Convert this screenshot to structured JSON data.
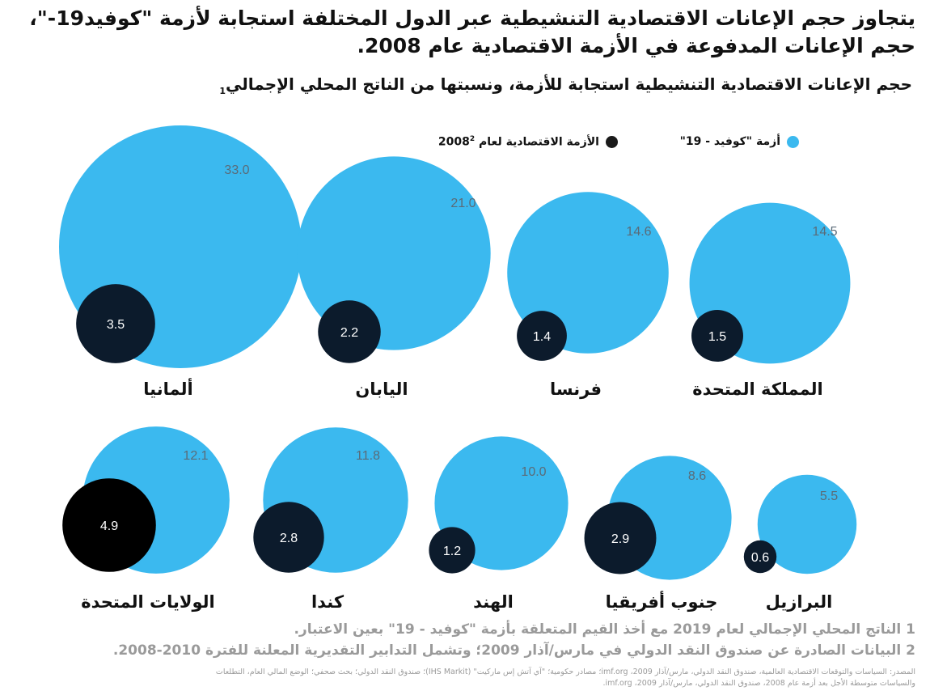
{
  "title_line1": "يتجاوز حجم الإعانات الاقتصادية التنشيطية عبر الدول المختلفة استجابة لأزمة \"كوفيد19-\"،",
  "title_line2": "حجم الإعانات المدفوعة في الأزمة الاقتصادية عام 2008.",
  "subtitle": "حجم الإعانات الاقتصادية التنشيطية استجابة للأزمة، ونسبتها من الناتج المحلي الإجمالي",
  "subtitle_sup": "1",
  "colors": {
    "covid": "#3bb9ef",
    "crisis2008": "#0c1b2c",
    "usa_2008": "#000000",
    "value_text": "#5a6b78"
  },
  "chart_data": {
    "type": "bubble",
    "legend": [
      {
        "name": "أزمة \"كوفيد - 19\"",
        "color": "#3bb9ef"
      },
      {
        "name": "الأزمة الاقتصادية لعام 2008",
        "sup": "2",
        "color": "#1a1a1a"
      }
    ],
    "legend_position": "top",
    "units": "% of GDP",
    "categories": [
      "ألمانيا",
      "اليابان",
      "فرنسا",
      "المملكة المتحدة",
      "الولايات المتحدة",
      "كندا",
      "الهند",
      "جنوب أفريقيا",
      "البرازيل"
    ],
    "series": [
      {
        "name": "أزمة \"كوفيد - 19\"",
        "values": [
          33.0,
          21.0,
          14.6,
          14.5,
          12.1,
          11.8,
          10.0,
          8.6,
          5.5
        ],
        "labels": [
          "33.0",
          "21.0",
          "14.6",
          "14.5",
          "12.1",
          "11.8",
          "10.0",
          "8.6",
          "5.5"
        ]
      },
      {
        "name": "الأزمة الاقتصادية لعام 2008",
        "values": [
          3.5,
          2.2,
          1.4,
          1.5,
          4.9,
          2.8,
          1.2,
          2.9,
          0.6
        ],
        "labels": [
          "3.5",
          "2.2",
          "1.4",
          "1.5",
          "4.9",
          "2.8",
          "1.2",
          "2.9",
          "0.6"
        ]
      }
    ]
  },
  "footnotes": [
    "1 الناتج المحلي الإجمالي لعام 2019 مع أخذ القيم المتعلقة بأزمة \"كوفيد - 19\" بعين الاعتبار.",
    "2 البيانات الصادرة عن صندوق النقد الدولي في مارس/آذار 2009؛ وتشمل التدابير التقديرية المعلنة للفترة 2010-2008."
  ],
  "source_line1": "المصدر: السياسات والتوقعات الاقتصادية العالمية، صندوق النقد الدولي، مارس/آذار 2009، imf.org؛ مصادر حكومية؛ \"آي آتش إس ماركيت\" (IHS Markit)؛ صندوق النقد الدولي؛ بحث صحفي؛ الوضع المالي العام، التطلعات",
  "source_line2": "والسياسات متوسطة الأجل بعد أزمة عام 2008، صندوق النقد الدولي، مارس/آذار 2009، imf.org."
}
